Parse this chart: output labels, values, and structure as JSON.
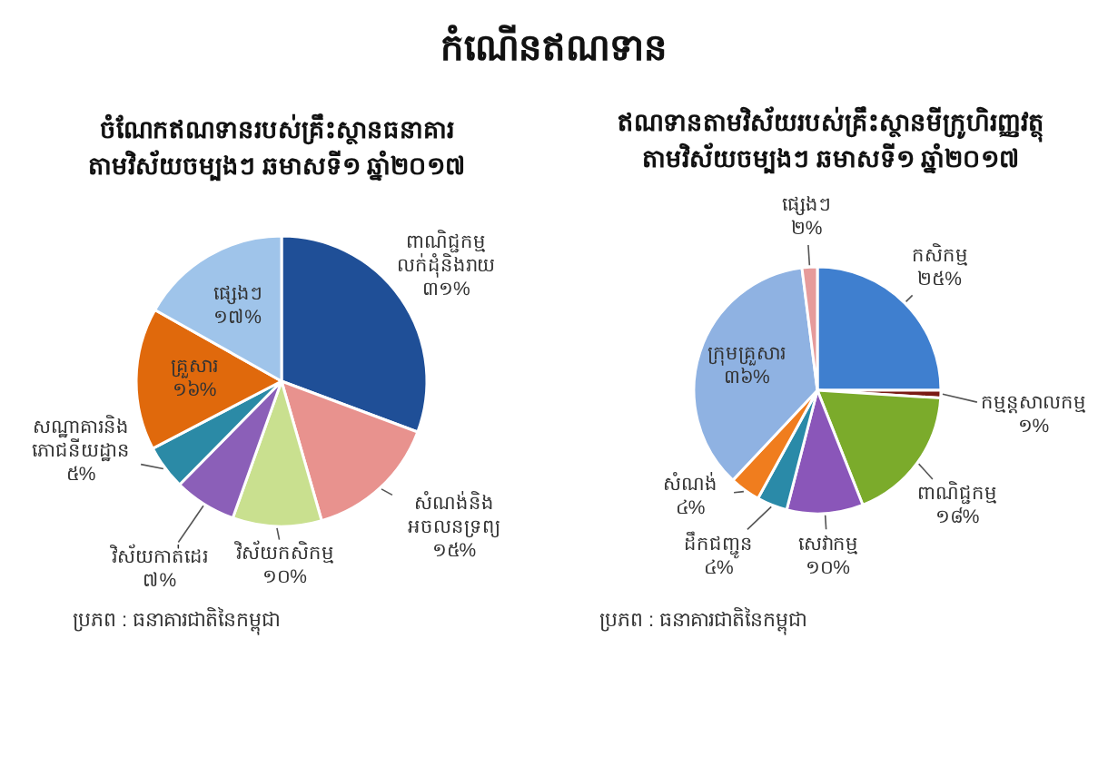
{
  "chart_data": [
    {
      "type": "other",
      "title": "កំណើនឥណទាន"
    },
    {
      "type": "pie",
      "title": "ចំណែកឥណទានរបស់គ្រឹះស្ថានធនាគារ\nតាមវិស័យចម្បងៗ ឆមាសទី១ ឆ្នាំ២០១៧",
      "categories": [
        "ពាណិជ្ជកម្មលក់ដុំនិងរាយ",
        "សំណង់និងអចលនទ្រព្យ",
        "វិស័យកសិកម្ម",
        "វិស័យកាត់ដេរ",
        "សណ្ឋាគារនិងភោជនីយដ្ឋាន",
        "គ្រួសារ",
        "ផ្សេងៗ"
      ],
      "values": [
        31,
        15,
        10,
        7,
        5,
        16,
        17
      ],
      "value_labels": [
        "៣១%",
        "១៥%",
        "១០%",
        "៧%",
        "៥%",
        "១៦%",
        "១៧%"
      ],
      "colors": [
        "#1f4f97",
        "#e8928e",
        "#c9e08f",
        "#8b5fb8",
        "#2b8aa6",
        "#e0690c",
        "#9fc4ea"
      ],
      "annotations": [
        "ប្រភព : ធនាគារជាតិនៃកម្ពុជា"
      ]
    },
    {
      "type": "pie",
      "title": "ឥណទានតាមវិស័យរបស់គ្រឹះស្ថានមីក្រូហិរញ្ញវត្ថុ\nតាមវិស័យចម្បងៗ ឆមាសទី១ ឆ្នាំ២០១៧",
      "categories": [
        "កសិកម្ម",
        "កម្មន្តសាលកម្ម",
        "ពាណិជ្ជកម្ម",
        "សេវាកម្ម",
        "ដឹកជញ្ជូន",
        "សំណង់",
        "ក្រុមគ្រួសារ",
        "ផ្សេងៗ"
      ],
      "values": [
        25,
        1,
        18,
        10,
        4,
        4,
        36,
        2
      ],
      "value_labels": [
        "២៥%",
        "១%",
        "១៨%",
        "១០%",
        "៤%",
        "៤%",
        "៣៦%",
        "២%"
      ],
      "colors": [
        "#3f7fcf",
        "#7a1a14",
        "#7bab2b",
        "#8a56b9",
        "#2a8aa8",
        "#f07d1e",
        "#8fb2e2",
        "#e69b9b"
      ],
      "annotations": [
        "ប្រភព : ធនាគារជាតិនៃកម្ពុជា"
      ]
    }
  ]
}
